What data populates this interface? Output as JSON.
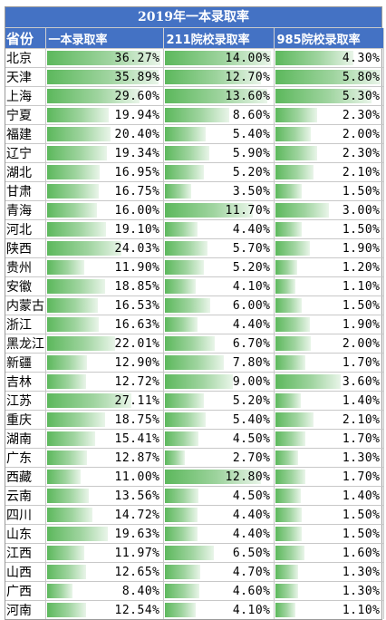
{
  "title": "2019年一本录取率",
  "headers": [
    "省份",
    "一本录取率",
    "211院校录取率",
    "985院校录取率"
  ],
  "bar_scale_max": [
    36.27,
    14.0,
    5.8
  ],
  "colors": {
    "header_bg": "#4472c4",
    "bar_start": "#5cb85c",
    "bar_end": "#e9f5e9"
  },
  "rows": [
    {
      "province": "北京",
      "yiben": "36.27%",
      "r211": "14.00%",
      "r985": "4.30%"
    },
    {
      "province": "天津",
      "yiben": "35.89%",
      "r211": "12.70%",
      "r985": "5.80%"
    },
    {
      "province": "上海",
      "yiben": "29.60%",
      "r211": "13.60%",
      "r985": "5.30%"
    },
    {
      "province": "宁夏",
      "yiben": "19.94%",
      "r211": "8.60%",
      "r985": "2.30%"
    },
    {
      "province": "福建",
      "yiben": "20.40%",
      "r211": "5.40%",
      "r985": "2.00%"
    },
    {
      "province": "辽宁",
      "yiben": "19.34%",
      "r211": "5.90%",
      "r985": "2.30%"
    },
    {
      "province": "湖北",
      "yiben": "16.95%",
      "r211": "5.20%",
      "r985": "2.10%"
    },
    {
      "province": "甘肃",
      "yiben": "16.75%",
      "r211": "3.50%",
      "r985": "1.50%"
    },
    {
      "province": "青海",
      "yiben": "16.00%",
      "r211": "11.70%",
      "r985": "3.00%"
    },
    {
      "province": "河北",
      "yiben": "19.10%",
      "r211": "4.40%",
      "r985": "1.50%"
    },
    {
      "province": "陕西",
      "yiben": "24.03%",
      "r211": "5.70%",
      "r985": "1.90%"
    },
    {
      "province": "贵州",
      "yiben": "11.90%",
      "r211": "5.20%",
      "r985": "1.20%"
    },
    {
      "province": "安徽",
      "yiben": "18.85%",
      "r211": "4.10%",
      "r985": "1.10%"
    },
    {
      "province": "内蒙古",
      "yiben": "16.53%",
      "r211": "6.00%",
      "r985": "1.50%"
    },
    {
      "province": "浙江",
      "yiben": "16.63%",
      "r211": "4.40%",
      "r985": "1.90%"
    },
    {
      "province": "黑龙江",
      "yiben": "22.01%",
      "r211": "6.70%",
      "r985": "2.00%"
    },
    {
      "province": "新疆",
      "yiben": "12.90%",
      "r211": "7.80%",
      "r985": "1.70%"
    },
    {
      "province": "吉林",
      "yiben": "12.72%",
      "r211": "9.00%",
      "r985": "3.60%"
    },
    {
      "province": "江苏",
      "yiben": "27.11%",
      "r211": "5.20%",
      "r985": "1.40%"
    },
    {
      "province": "重庆",
      "yiben": "18.75%",
      "r211": "5.40%",
      "r985": "2.10%"
    },
    {
      "province": "湖南",
      "yiben": "15.41%",
      "r211": "4.50%",
      "r985": "1.70%"
    },
    {
      "province": "广东",
      "yiben": "12.87%",
      "r211": "2.70%",
      "r985": "1.30%"
    },
    {
      "province": "西藏",
      "yiben": "11.00%",
      "r211": "12.80%",
      "r985": "1.70%"
    },
    {
      "province": "云南",
      "yiben": "13.56%",
      "r211": "4.50%",
      "r985": "1.40%"
    },
    {
      "province": "四川",
      "yiben": "14.72%",
      "r211": "4.40%",
      "r985": "1.50%"
    },
    {
      "province": "山东",
      "yiben": "19.63%",
      "r211": "4.40%",
      "r985": "1.50%"
    },
    {
      "province": "江西",
      "yiben": "11.97%",
      "r211": "6.50%",
      "r985": "1.60%"
    },
    {
      "province": "山西",
      "yiben": "12.65%",
      "r211": "4.70%",
      "r985": "1.30%"
    },
    {
      "province": "广西",
      "yiben": "8.40%",
      "r211": "4.60%",
      "r985": "1.30%"
    },
    {
      "province": "河南",
      "yiben": "12.54%",
      "r211": "4.10%",
      "r985": "1.10%"
    }
  ]
}
